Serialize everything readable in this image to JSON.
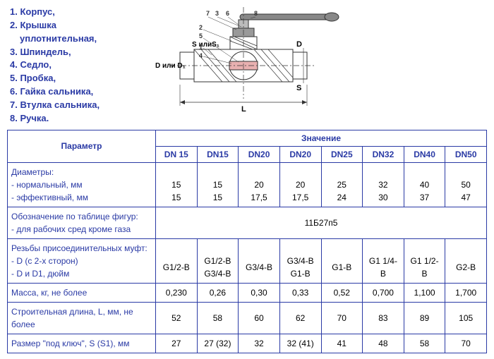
{
  "parts": [
    {
      "n": "1.",
      "label": "Корпус,"
    },
    {
      "n": "2.",
      "label": "Крышка"
    },
    {
      "n": "",
      "label": "уплотнительная,",
      "sub": true
    },
    {
      "n": "3.",
      "label": "Шпиндель,"
    },
    {
      "n": "4.",
      "label": "Седло,"
    },
    {
      "n": "5.",
      "label": "Пробка,"
    },
    {
      "n": "6.",
      "label": "Гайка сальника,"
    },
    {
      "n": "7.",
      "label": "Втулка сальника,"
    },
    {
      "n": "8.",
      "label": "Ручка."
    }
  ],
  "diagram_labels": {
    "D": "D",
    "Dor": "D или D₁",
    "S": "S",
    "Sor": "S илиS₁",
    "L": "L"
  },
  "headers": {
    "value": "Значение",
    "param": "Параметр",
    "cols": [
      "DN 15",
      "DN15",
      "DN20",
      "DN20",
      "DN25",
      "DN32",
      "DN40",
      "DN50"
    ]
  },
  "rows": [
    {
      "param": "Диаметры:<br>- нормальный, мм<br>- эффективный, мм",
      "vals": [
        "<br>15<br>15",
        "<br>15<br>15",
        "<br>20<br>17,5",
        "<br>20<br>17,5",
        "<br>25<br>24",
        "<br>32<br>30",
        "<br>40<br>37",
        "<br>50<br>47"
      ]
    },
    {
      "param": "Обозначение по таблице фигур:<br>- для рабочих сред кроме газа",
      "span": "11Б27п5"
    },
    {
      "param": "Резьбы присоединительных муфт:<br>- D (с 2-х сторон)<br>- D и D1, дюйм",
      "vals": [
        "<br>G1/2-B",
        "<br>G1/2-B<br>G3/4-B",
        "<br>G3/4-B",
        "<br>G3/4-B<br>G1-B",
        "<br>G1-B",
        "<br>G1 1/4-B",
        "<br>G1 1/2-B",
        "<br>G2-B"
      ]
    },
    {
      "param": "Масса, кг, не более",
      "vals": [
        "0,230",
        "0,26",
        "0,30",
        "0,33",
        "0,52",
        "0,700",
        "1,100",
        "1,700"
      ]
    },
    {
      "param": "Строительная длина, L, мм, не более",
      "vals": [
        "52",
        "58",
        "60",
        "62",
        "70",
        "83",
        "89",
        "105"
      ]
    },
    {
      "param": "Размер \"под ключ\", S (S1), мм",
      "vals": [
        "27",
        "27 (32)",
        "32",
        "32 (41)",
        "41",
        "48",
        "58",
        "70"
      ]
    }
  ]
}
